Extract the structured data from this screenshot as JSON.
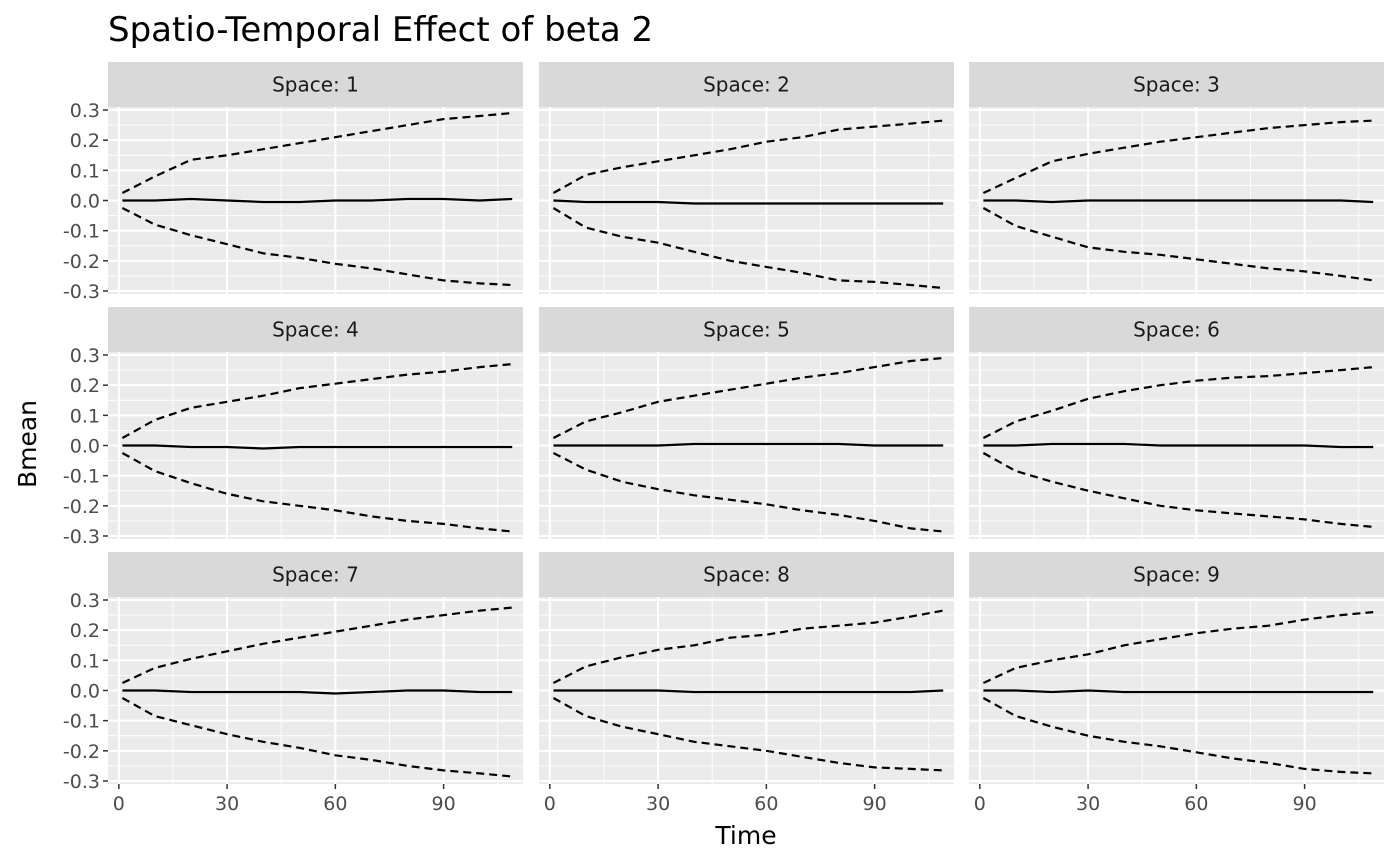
{
  "chart_data": {
    "type": "line",
    "title": "Spatio-Temporal Effect of beta 2",
    "xlabel": "Time",
    "ylabel": "Bmean",
    "facet_prefix": "Space: ",
    "xlim": [
      -3,
      112
    ],
    "ylim": [
      -0.31,
      0.31
    ],
    "x_ticks": [
      0,
      30,
      60,
      90
    ],
    "x_tick_labels": [
      "0",
      "30",
      "60",
      "90"
    ],
    "y_ticks": [
      0.3,
      0.2,
      0.1,
      0.0,
      -0.1,
      -0.2,
      -0.3
    ],
    "y_tick_labels": [
      "0.3",
      "0.2",
      "0.1",
      "0.0",
      "-0.1",
      "-0.2",
      "-0.3"
    ],
    "x": [
      1,
      10,
      20,
      30,
      40,
      50,
      60,
      70,
      80,
      90,
      100,
      109
    ],
    "grid": true,
    "colors": {
      "panel_bg": "#ebebeb",
      "strip_bg": "#d9d9d9",
      "grid": "#ffffff",
      "line": "#000000",
      "tick_text": "#4d4d4d"
    },
    "panels": [
      {
        "label": "1",
        "mean": [
          0.0,
          0.0,
          0.005,
          0.0,
          -0.005,
          -0.005,
          0.0,
          0.0,
          0.005,
          0.005,
          0.0,
          0.005
        ],
        "upper": [
          0.025,
          0.08,
          0.135,
          0.15,
          0.17,
          0.19,
          0.21,
          0.23,
          0.25,
          0.27,
          0.28,
          0.29
        ],
        "lower": [
          -0.025,
          -0.08,
          -0.115,
          -0.145,
          -0.175,
          -0.19,
          -0.21,
          -0.225,
          -0.245,
          -0.265,
          -0.275,
          -0.28
        ]
      },
      {
        "label": "2",
        "mean": [
          0.0,
          -0.005,
          -0.005,
          -0.005,
          -0.01,
          -0.01,
          -0.01,
          -0.01,
          -0.01,
          -0.01,
          -0.01,
          -0.01
        ],
        "upper": [
          0.025,
          0.085,
          0.11,
          0.13,
          0.15,
          0.17,
          0.195,
          0.21,
          0.235,
          0.245,
          0.255,
          0.265
        ],
        "lower": [
          -0.025,
          -0.09,
          -0.12,
          -0.14,
          -0.17,
          -0.2,
          -0.22,
          -0.24,
          -0.265,
          -0.27,
          -0.28,
          -0.29
        ]
      },
      {
        "label": "3",
        "mean": [
          0.0,
          0.0,
          -0.005,
          0.0,
          0.0,
          0.0,
          0.0,
          0.0,
          0.0,
          0.0,
          0.0,
          -0.005
        ],
        "upper": [
          0.025,
          0.075,
          0.13,
          0.155,
          0.175,
          0.195,
          0.21,
          0.225,
          0.24,
          0.25,
          0.26,
          0.265
        ],
        "lower": [
          -0.025,
          -0.085,
          -0.12,
          -0.155,
          -0.17,
          -0.18,
          -0.195,
          -0.21,
          -0.225,
          -0.235,
          -0.25,
          -0.265
        ]
      },
      {
        "label": "4",
        "mean": [
          0.0,
          0.0,
          -0.005,
          -0.005,
          -0.01,
          -0.005,
          -0.005,
          -0.005,
          -0.005,
          -0.005,
          -0.005,
          -0.005
        ],
        "upper": [
          0.025,
          0.085,
          0.125,
          0.145,
          0.165,
          0.19,
          0.205,
          0.22,
          0.235,
          0.245,
          0.26,
          0.27
        ],
        "lower": [
          -0.025,
          -0.085,
          -0.125,
          -0.16,
          -0.185,
          -0.2,
          -0.215,
          -0.235,
          -0.25,
          -0.26,
          -0.275,
          -0.285
        ]
      },
      {
        "label": "5",
        "mean": [
          0.0,
          0.0,
          0.0,
          0.0,
          0.005,
          0.005,
          0.005,
          0.005,
          0.005,
          0.0,
          0.0,
          0.0
        ],
        "upper": [
          0.025,
          0.08,
          0.11,
          0.145,
          0.165,
          0.185,
          0.205,
          0.225,
          0.24,
          0.26,
          0.28,
          0.29
        ],
        "lower": [
          -0.025,
          -0.08,
          -0.12,
          -0.145,
          -0.165,
          -0.18,
          -0.195,
          -0.215,
          -0.23,
          -0.25,
          -0.275,
          -0.285
        ]
      },
      {
        "label": "6",
        "mean": [
          0.0,
          0.0,
          0.005,
          0.005,
          0.005,
          0.0,
          0.0,
          0.0,
          0.0,
          0.0,
          -0.005,
          -0.005
        ],
        "upper": [
          0.025,
          0.08,
          0.115,
          0.155,
          0.18,
          0.2,
          0.215,
          0.225,
          0.23,
          0.24,
          0.25,
          0.26
        ],
        "lower": [
          -0.025,
          -0.085,
          -0.12,
          -0.15,
          -0.175,
          -0.2,
          -0.215,
          -0.225,
          -0.235,
          -0.245,
          -0.26,
          -0.27
        ]
      },
      {
        "label": "7",
        "mean": [
          0.0,
          0.0,
          -0.005,
          -0.005,
          -0.005,
          -0.005,
          -0.01,
          -0.005,
          0.0,
          0.0,
          -0.005,
          -0.005
        ],
        "upper": [
          0.025,
          0.075,
          0.105,
          0.13,
          0.155,
          0.175,
          0.195,
          0.215,
          0.235,
          0.25,
          0.265,
          0.275
        ],
        "lower": [
          -0.025,
          -0.085,
          -0.115,
          -0.145,
          -0.17,
          -0.19,
          -0.215,
          -0.23,
          -0.25,
          -0.265,
          -0.275,
          -0.285
        ]
      },
      {
        "label": "8",
        "mean": [
          0.0,
          0.0,
          0.0,
          0.0,
          -0.005,
          -0.005,
          -0.005,
          -0.005,
          -0.005,
          -0.005,
          -0.005,
          0.0
        ],
        "upper": [
          0.025,
          0.08,
          0.11,
          0.135,
          0.15,
          0.175,
          0.185,
          0.205,
          0.215,
          0.225,
          0.245,
          0.265
        ],
        "lower": [
          -0.025,
          -0.085,
          -0.12,
          -0.145,
          -0.17,
          -0.185,
          -0.2,
          -0.22,
          -0.24,
          -0.255,
          -0.26,
          -0.265
        ]
      },
      {
        "label": "9",
        "mean": [
          0.0,
          0.0,
          -0.005,
          0.0,
          -0.005,
          -0.005,
          -0.005,
          -0.005,
          -0.005,
          -0.005,
          -0.005,
          -0.005
        ],
        "upper": [
          0.025,
          0.075,
          0.1,
          0.12,
          0.15,
          0.17,
          0.19,
          0.205,
          0.215,
          0.235,
          0.25,
          0.26
        ],
        "lower": [
          -0.025,
          -0.085,
          -0.12,
          -0.15,
          -0.17,
          -0.185,
          -0.205,
          -0.225,
          -0.24,
          -0.26,
          -0.27,
          -0.275
        ]
      }
    ]
  }
}
